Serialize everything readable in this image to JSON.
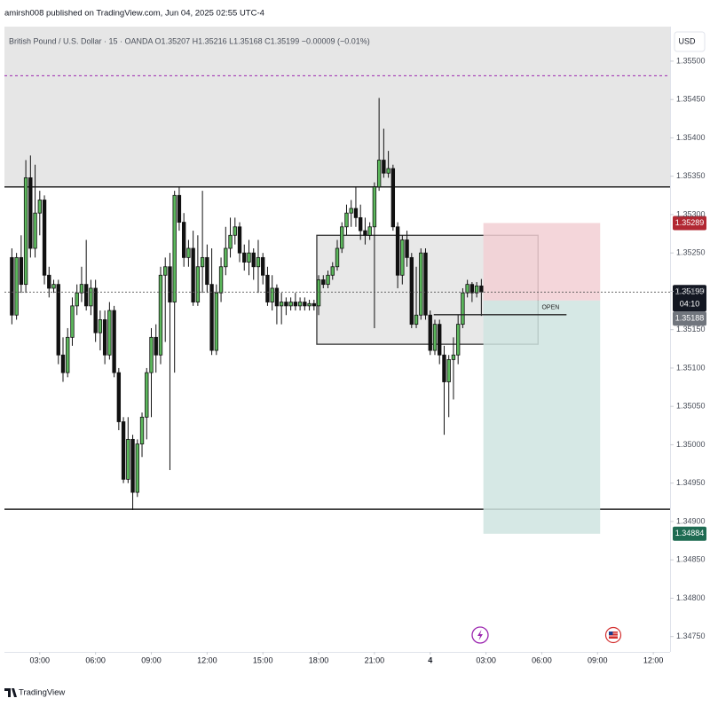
{
  "header": "amirsh008 published on TradingView.com, Jun 04, 2025 02:55 UTC-4",
  "footer": "TradingView",
  "chart_data": {
    "type": "candlestick",
    "legend_text": "British Pound / U.S. Dollar · 15 · OANDA   O1.35207  H1.35216  L1.35168  C1.35199  −0.00009 (−0.01%)",
    "currency": "USD",
    "up_color": "#5cb85c",
    "down_color": "#111111",
    "wick_color": "#111111",
    "x": [
      1.5,
      1.75,
      2,
      2.25,
      2.5,
      2.75,
      3,
      3.25,
      3.5,
      3.75,
      4,
      4.25,
      4.5,
      4.75,
      5,
      5.25,
      5.5,
      5.75,
      6,
      6.25,
      6.5,
      6.75,
      7,
      7.25,
      7.5,
      7.75,
      8,
      8.25,
      8.5,
      8.75,
      9,
      9.25,
      9.5,
      9.75,
      10,
      10.25,
      10.5,
      10.75,
      11,
      11.25,
      11.5,
      11.75,
      12,
      12.25,
      12.5,
      12.75,
      13,
      13.25,
      13.5,
      13.75,
      14,
      14.25,
      14.5,
      14.75,
      15,
      15.25,
      15.5,
      15.75,
      16,
      16.25,
      16.5,
      16.75,
      17,
      17.25,
      17.5,
      17.75,
      18,
      18.25,
      18.5,
      18.75,
      19,
      19.25,
      19.5,
      19.75,
      20,
      20.25,
      20.5,
      20.75,
      21,
      21.25,
      21.5,
      21.75,
      22,
      22.25,
      22.5,
      22.75,
      23,
      23.25,
      23.5,
      23.75,
      24,
      24.25,
      24.5,
      24.75,
      25,
      25.25,
      25.5,
      25.75,
      26,
      26.25,
      26.5,
      26.75
    ],
    "open": [
      1.35244,
      1.35169,
      1.35244,
      1.35209,
      1.35348,
      1.35256,
      1.35302,
      1.35319,
      1.35221,
      1.35204,
      1.35209,
      1.35117,
      1.35094,
      1.3514,
      1.35181,
      1.35198,
      1.35209,
      1.35181,
      1.35204,
      1.35146,
      1.35163,
      1.35117,
      1.35175,
      1.35094,
      1.3503,
      1.34955,
      1.35007,
      1.34938,
      1.35001,
      1.35036,
      1.35094,
      1.3514,
      1.35117,
      1.35221,
      1.35232,
      1.35186,
      1.35325,
      1.3529,
      1.35244,
      1.35256,
      1.35186,
      1.35232,
      1.35244,
      1.35209,
      1.35123,
      1.35198,
      1.35232,
      1.35256,
      1.35273,
      1.35284,
      1.3525,
      1.35238,
      1.3525,
      1.35232,
      1.35244,
      1.35221,
      1.35186,
      1.35204,
      1.35181,
      1.35186,
      1.35181,
      1.35186,
      1.35181,
      1.35186,
      1.35181,
      1.35184,
      1.35181,
      1.35215,
      1.35209,
      1.35221,
      1.35232,
      1.35256,
      1.35284,
      1.35302,
      1.35308,
      1.35296,
      1.35279,
      1.35273,
      1.35284,
      1.35336,
      1.35371,
      1.35354,
      1.3536,
      1.35284,
      1.35221,
      1.35267,
      1.35244,
      1.35157,
      1.35169,
      1.3525,
      1.35169,
      1.35123,
      1.35157,
      1.35117,
      1.35082,
      1.35111,
      1.35117,
      1.35157,
      1.35198,
      1.35209,
      1.35198,
      1.35207
    ],
    "high": [
      1.35256,
      1.3525,
      1.35273,
      1.35371,
      1.35377,
      1.35365,
      1.35331,
      1.35325,
      1.35232,
      1.35215,
      1.35215,
      1.3514,
      1.35152,
      1.35192,
      1.35209,
      1.35232,
      1.35267,
      1.35215,
      1.35215,
      1.35175,
      1.35175,
      1.35186,
      1.35181,
      1.351,
      1.35036,
      1.35036,
      1.35013,
      1.35007,
      1.35042,
      1.351,
      1.35152,
      1.35157,
      1.35232,
      1.35244,
      1.3525,
      1.35331,
      1.35336,
      1.35302,
      1.35267,
      1.35279,
      1.35273,
      1.35331,
      1.35261,
      1.35256,
      1.35209,
      1.35244,
      1.35284,
      1.35296,
      1.35296,
      1.3529,
      1.35261,
      1.35267,
      1.35256,
      1.35267,
      1.3525,
      1.35232,
      1.35221,
      1.35209,
      1.35198,
      1.35192,
      1.35192,
      1.35198,
      1.35192,
      1.35192,
      1.35189,
      1.35189,
      1.35221,
      1.35221,
      1.35227,
      1.35238,
      1.35267,
      1.3529,
      1.35313,
      1.35319,
      1.35336,
      1.35313,
      1.35296,
      1.3529,
      1.35342,
      1.35452,
      1.35412,
      1.35383,
      1.35365,
      1.3529,
      1.35273,
      1.35279,
      1.3525,
      1.35232,
      1.35256,
      1.35256,
      1.35175,
      1.35163,
      1.35163,
      1.35129,
      1.35117,
      1.3514,
      1.35169,
      1.35204,
      1.35215,
      1.35212,
      1.35212,
      1.35216
    ],
    "low": [
      1.35157,
      1.35163,
      1.35198,
      1.35198,
      1.35244,
      1.35244,
      1.35273,
      1.35209,
      1.35192,
      1.35198,
      1.35105,
      1.35082,
      1.35088,
      1.35129,
      1.35169,
      1.35186,
      1.35175,
      1.35169,
      1.35134,
      1.35123,
      1.35105,
      1.35111,
      1.35088,
      1.35019,
      1.3495,
      1.3495,
      1.34915,
      1.34932,
      1.34984,
      1.35007,
      1.35036,
      1.35094,
      1.35105,
      1.35134,
      1.34967,
      1.35094,
      1.35279,
      1.35232,
      1.35232,
      1.35181,
      1.35181,
      1.35198,
      1.35198,
      1.35117,
      1.35117,
      1.35186,
      1.35221,
      1.35244,
      1.35261,
      1.35238,
      1.35227,
      1.35221,
      1.35215,
      1.35198,
      1.35209,
      1.35181,
      1.35175,
      1.35157,
      1.35157,
      1.35169,
      1.35175,
      1.35175,
      1.35175,
      1.35175,
      1.35175,
      1.35175,
      1.35169,
      1.35204,
      1.35204,
      1.35215,
      1.35227,
      1.3525,
      1.35273,
      1.35284,
      1.35284,
      1.35267,
      1.35261,
      1.35267,
      1.35152,
      1.35331,
      1.35348,
      1.35348,
      1.35279,
      1.35204,
      1.35209,
      1.35232,
      1.35152,
      1.35152,
      1.35163,
      1.35163,
      1.35117,
      1.35117,
      1.35105,
      1.35013,
      1.35036,
      1.35059,
      1.35105,
      1.35152,
      1.35192,
      1.35186,
      1.35192,
      1.35168
    ],
    "close": [
      1.35169,
      1.35244,
      1.35209,
      1.35348,
      1.35256,
      1.35302,
      1.35319,
      1.35221,
      1.35204,
      1.35209,
      1.35117,
      1.35094,
      1.3514,
      1.35181,
      1.35198,
      1.35209,
      1.35181,
      1.35204,
      1.35146,
      1.35163,
      1.35117,
      1.35175,
      1.35094,
      1.3503,
      1.34955,
      1.35007,
      1.34938,
      1.35001,
      1.35036,
      1.35094,
      1.3514,
      1.35117,
      1.35221,
      1.35232,
      1.35186,
      1.35325,
      1.3529,
      1.35244,
      1.35256,
      1.35186,
      1.35232,
      1.35244,
      1.35209,
      1.35123,
      1.35198,
      1.35232,
      1.35256,
      1.35273,
      1.35284,
      1.3525,
      1.35238,
      1.3525,
      1.35232,
      1.35244,
      1.35221,
      1.35186,
      1.35204,
      1.35181,
      1.35186,
      1.35181,
      1.35186,
      1.35181,
      1.35186,
      1.35181,
      1.35184,
      1.35181,
      1.35215,
      1.35209,
      1.35221,
      1.35232,
      1.35256,
      1.35284,
      1.35302,
      1.35308,
      1.35296,
      1.35279,
      1.35273,
      1.35284,
      1.35336,
      1.35371,
      1.35354,
      1.3536,
      1.35284,
      1.35221,
      1.35267,
      1.35244,
      1.35157,
      1.35169,
      1.3525,
      1.35169,
      1.35123,
      1.35157,
      1.35117,
      1.35082,
      1.35111,
      1.35117,
      1.35157,
      1.35198,
      1.35209,
      1.35198,
      1.35207,
      1.35199
    ],
    "countdown": "04:10",
    "xlim": [
      1.1,
      36.9
    ],
    "ylim": [
      1.3473,
      1.35545
    ],
    "xticks": [
      {
        "value": 3,
        "label": "03:00"
      },
      {
        "value": 6,
        "label": "06:00"
      },
      {
        "value": 9,
        "label": "09:00"
      },
      {
        "value": 12,
        "label": "12:00"
      },
      {
        "value": 15,
        "label": "15:00"
      },
      {
        "value": 18,
        "label": "18:00"
      },
      {
        "value": 21,
        "label": "21:00"
      },
      {
        "value": 24,
        "label": "4"
      },
      {
        "value": 27,
        "label": "03:00"
      },
      {
        "value": 30,
        "label": "06:00"
      },
      {
        "value": 33,
        "label": "09:00"
      },
      {
        "value": 36,
        "label": "12:00"
      }
    ],
    "yticks": [
      {
        "value": 1.355,
        "label": "1.35500"
      },
      {
        "value": 1.3545,
        "label": "1.35450"
      },
      {
        "value": 1.354,
        "label": "1.35400"
      },
      {
        "value": 1.3535,
        "label": "1.35350"
      },
      {
        "value": 1.353,
        "label": "1.35300"
      },
      {
        "value": 1.3525,
        "label": "1.35250"
      },
      {
        "value": 1.352,
        "label": "1.35200"
      },
      {
        "value": 1.3515,
        "label": "1.35150"
      },
      {
        "value": 1.351,
        "label": "1.35100"
      },
      {
        "value": 1.3505,
        "label": "1.35050"
      },
      {
        "value": 1.35,
        "label": "1.35000"
      },
      {
        "value": 1.3495,
        "label": "1.34950"
      },
      {
        "value": 1.349,
        "label": "1.34900"
      },
      {
        "value": 1.3485,
        "label": "1.34850"
      },
      {
        "value": 1.348,
        "label": "1.34800"
      },
      {
        "value": 1.3475,
        "label": "1.34750"
      }
    ],
    "supply_zone": {
      "low": 1.35336,
      "color": "#e6e6e6"
    },
    "hlines": [
      {
        "value": 1.35336,
        "color": "#222222"
      },
      {
        "value": 1.34916,
        "color": "#222222"
      }
    ],
    "dashed_line": {
      "value": 1.35481,
      "color": "#9c27b0"
    },
    "box": {
      "x": [
        17.9,
        29.8
      ],
      "high": 1.35273,
      "low": 1.35131,
      "color": "#e0e0e0"
    },
    "position": {
      "x": [
        26.86,
        33.14
      ],
      "entry": 1.35188,
      "stop": 1.35289,
      "target": 1.34884,
      "stop_color": "#f2cfd3",
      "target_color": "#cfe4e0",
      "stop_label_color": "#b22833",
      "target_label_color": "#1e6b52",
      "entry_label_color": "#70757d",
      "open_x": [
        24.19,
        31.33
      ],
      "open_label": "OPEN"
    }
  }
}
